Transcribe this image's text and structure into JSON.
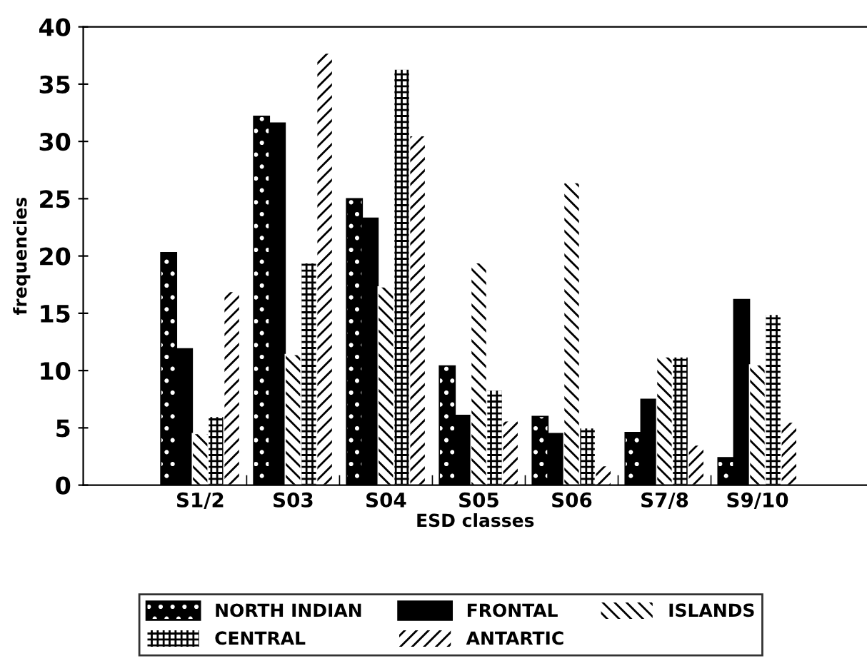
{
  "chart_data": {
    "type": "bar",
    "xlabel": "ESD classes",
    "ylabel": "frequencies",
    "categories": [
      "S1/2",
      "S03",
      "S04",
      "S05",
      "S06",
      "S7/8",
      "S9/10"
    ],
    "series": [
      {
        "name": "NORTH INDIAN",
        "color": "#000000",
        "values": [
          20.3,
          32.2,
          25,
          10.4,
          6,
          4.6,
          2.4
        ]
      },
      {
        "name": "FRONTAL",
        "color": "#000000",
        "values": [
          11.9,
          31.6,
          23.3,
          6.1,
          4.5,
          7.5,
          16.2
        ]
      },
      {
        "name": "ISLANDS",
        "color": "#ffffff",
        "values": [
          4.5,
          11.4,
          17.3,
          19.4,
          26.4,
          11.2,
          10.5
        ]
      },
      {
        "name": "CENTRAL",
        "color": "#ffffff",
        "values": [
          6,
          19.4,
          36.3,
          8.3,
          5,
          11.2,
          14.9
        ]
      },
      {
        "name": "ANTARTIC",
        "color": "#ffffff",
        "values": [
          16.9,
          37.7,
          30.5,
          5.6,
          1.7,
          3.5,
          5.5
        ]
      }
    ],
    "ylim": [
      0,
      40
    ],
    "yticks": [
      0,
      5,
      10,
      15,
      20,
      25,
      30,
      35,
      40
    ],
    "grid": false,
    "legend": "bottom"
  }
}
